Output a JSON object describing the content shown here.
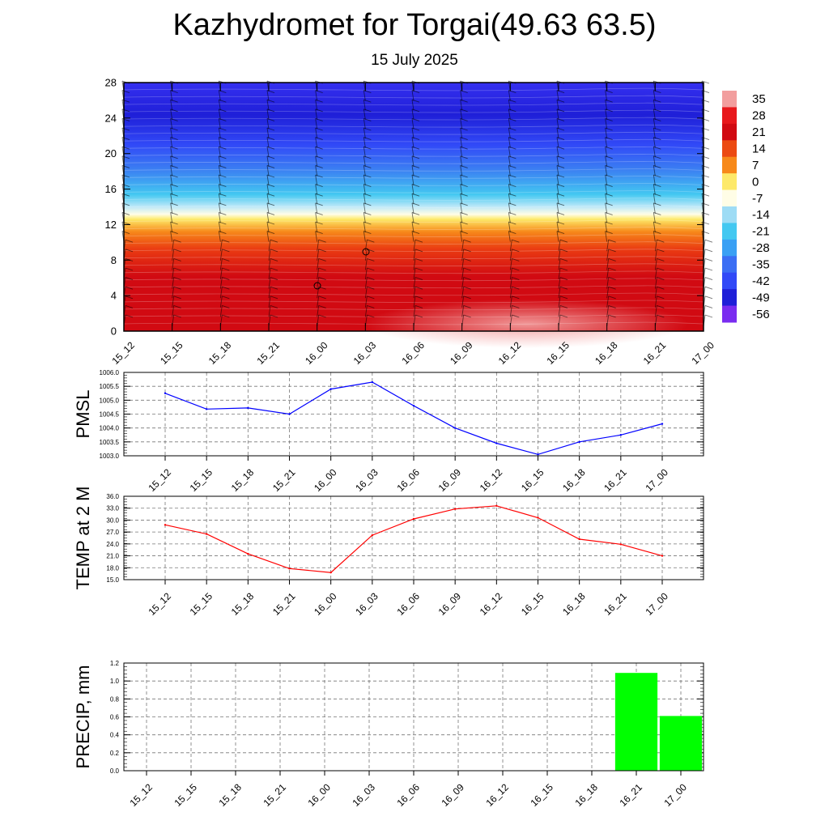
{
  "header": {
    "title": "Kazhydromet for Torgai(49.63 63.5)",
    "subtitle": "15 July 2025"
  },
  "time_labels": [
    "15_12",
    "15_15",
    "15_18",
    "15_21",
    "16_00",
    "16_03",
    "16_06",
    "16_09",
    "16_12",
    "16_15",
    "16_18",
    "16_21",
    "17_00"
  ],
  "chart_data": [
    {
      "type": "heatmap",
      "y_ticks": [
        0,
        4,
        8,
        12,
        16,
        20,
        24,
        28
      ],
      "ylim": [
        0,
        28
      ],
      "colorbar_labels": [
        "35",
        "28",
        "21",
        "14",
        "7",
        "0",
        "-7",
        "-14",
        "-21",
        "-28",
        "-35",
        "-42",
        "-49",
        "-56"
      ],
      "colors": {
        "high": "#f29e9e",
        "warm": "#d10a12",
        "orange": "#f7891a",
        "yellow": "#fde96a",
        "neutral": "#fffde6",
        "cyan": "#43c8f1",
        "blue": "#3149f7",
        "deep": "#1f1fd8",
        "violet": "#7a2cf0"
      }
    },
    {
      "type": "line",
      "ylabel": "PMSL",
      "ylim": [
        1003.0,
        1006.0
      ],
      "y_ticks": [
        "1003.0",
        "1003.5",
        "1004.0",
        "1004.5",
        "1005.0",
        "1005.5",
        "1006.0"
      ],
      "color": "#0000ff",
      "values": [
        1005.25,
        1004.68,
        1004.72,
        1004.5,
        1005.4,
        1005.65,
        1004.8,
        1004.0,
        1003.45,
        1003.05,
        1003.5,
        1003.75,
        1004.15
      ]
    },
    {
      "type": "line",
      "ylabel": "TEMP at 2 M",
      "ylim": [
        15.0,
        36.0
      ],
      "y_ticks": [
        "15.0",
        "18.0",
        "21.0",
        "24.0",
        "27.0",
        "30.0",
        "33.0",
        "36.0"
      ],
      "color": "#ff0000",
      "values": [
        28.8,
        26.5,
        21.5,
        17.8,
        16.8,
        26.2,
        30.3,
        32.8,
        33.6,
        30.6,
        25.2,
        23.9,
        21.0
      ]
    },
    {
      "type": "bar",
      "ylabel": "PRECIP, mm",
      "ylim": [
        0.0,
        1.2
      ],
      "y_ticks": [
        "0.0",
        "0.2",
        "0.4",
        "0.6",
        "0.8",
        "1.0",
        "1.2"
      ],
      "color": "#00ff00",
      "values": [
        0,
        0,
        0,
        0,
        0,
        0,
        0,
        0,
        0,
        0,
        0,
        1.09,
        0.61
      ]
    }
  ]
}
